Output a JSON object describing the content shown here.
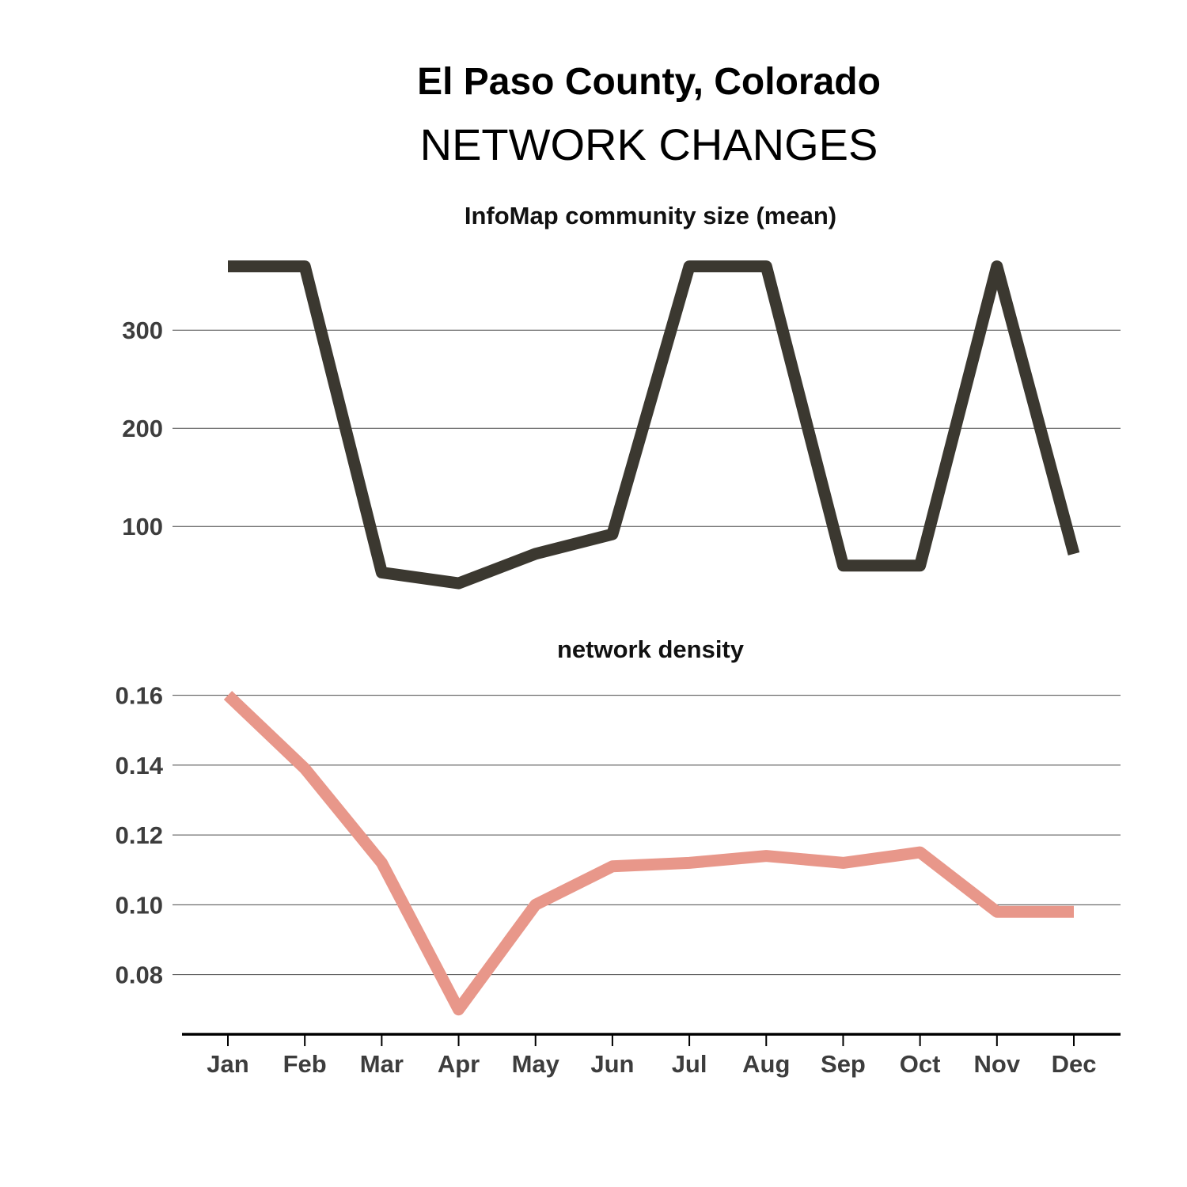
{
  "header": {
    "title": "El Paso County, Colorado",
    "subtitle": "NETWORK CHANGES"
  },
  "chart_data": [
    {
      "type": "line",
      "title": "InfoMap community size (mean)",
      "categories": [
        "Jan",
        "Feb",
        "Mar",
        "Apr",
        "May",
        "Jun",
        "Jul",
        "Aug",
        "Sep",
        "Oct",
        "Nov",
        "Dec"
      ],
      "series": [
        {
          "values": [
            365,
            365,
            53,
            42,
            72,
            92,
            365,
            365,
            60,
            60,
            365,
            72
          ],
          "color": "#3b3830"
        }
      ],
      "yticks": [
        100,
        200,
        300
      ],
      "ytick_labels": [
        "100",
        "200",
        "300"
      ],
      "ylim": [
        30,
        380
      ],
      "grid": true
    },
    {
      "type": "line",
      "title": "network density",
      "categories": [
        "Jan",
        "Feb",
        "Mar",
        "Apr",
        "May",
        "Jun",
        "Jul",
        "Aug",
        "Sep",
        "Oct",
        "Nov",
        "Dec"
      ],
      "series": [
        {
          "values": [
            0.16,
            0.139,
            0.112,
            0.07,
            0.1,
            0.111,
            0.112,
            0.114,
            0.112,
            0.115,
            0.098,
            0.098
          ],
          "color": "#e8978a"
        }
      ],
      "yticks": [
        0.08,
        0.1,
        0.12,
        0.14,
        0.16
      ],
      "ytick_labels": [
        "0.08",
        "0.10",
        "0.12",
        "0.14",
        "0.16"
      ],
      "ylim": [
        0.0645,
        0.1633
      ],
      "grid": true
    }
  ]
}
